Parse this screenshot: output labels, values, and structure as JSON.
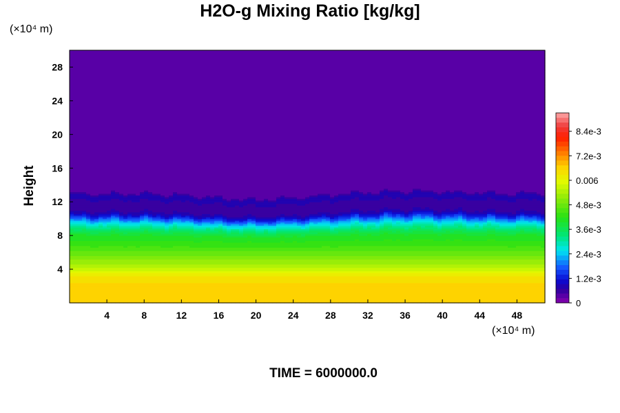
{
  "chart_data": {
    "type": "heatmap",
    "title": "H2O-g Mixing Ratio [kg/kg]",
    "ylabel": "Height",
    "x_unit": "(×10⁴ m)",
    "y_unit": "(×10⁴ m)",
    "x_ticks": [
      4,
      8,
      12,
      16,
      20,
      24,
      28,
      32,
      36,
      40,
      44,
      48
    ],
    "y_ticks": [
      4,
      8,
      12,
      16,
      20,
      24,
      28
    ],
    "xlim": [
      0,
      51
    ],
    "ylim": [
      0,
      30
    ],
    "colorbar": {
      "min": 0,
      "max": 0.0093,
      "tick_values": [
        0,
        0.0012,
        0.0024,
        0.0036,
        0.0048,
        0.006,
        0.0072,
        0.0084
      ],
      "tick_labels": [
        "0",
        "1.2e-3",
        "2.4e-3",
        "3.6e-3",
        "4.8e-3",
        "0.006",
        "7.2e-3",
        "8.4e-3"
      ]
    },
    "profile": {
      "height": [
        0,
        1,
        2,
        3,
        3.4,
        4,
        5,
        6,
        7,
        8,
        8.5,
        9,
        9.5,
        10,
        10.5,
        11,
        11.5,
        12,
        12.7,
        13.2,
        30
      ],
      "value": [
        0.0067,
        0.0067,
        0.0066,
        0.0065,
        0.0062,
        0.0057,
        0.0052,
        0.0047,
        0.0043,
        0.004,
        0.0036,
        0.0031,
        0.0025,
        0.0017,
        0.0009,
        0.0005,
        0.0004,
        0.0005,
        0.0008,
        0.0002,
        0.0002
      ]
    },
    "features": [
      {
        "x_center": 20,
        "x_width": 7,
        "height_shift": -0.7
      },
      {
        "x_center": 37,
        "x_width": 6,
        "height_shift": 0.3
      }
    ]
  },
  "time_label": "TIME =",
  "time_value": "6000000.0"
}
